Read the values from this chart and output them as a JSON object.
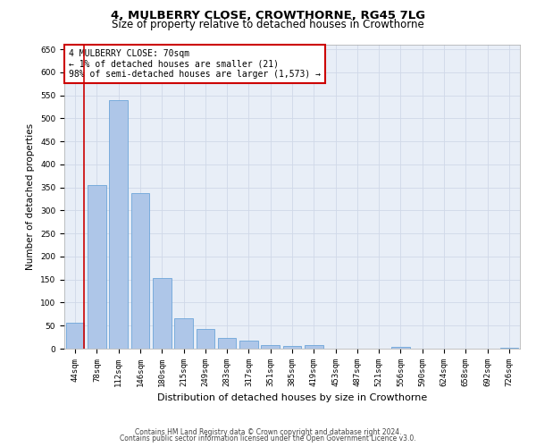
{
  "title": "4, MULBERRY CLOSE, CROWTHORNE, RG45 7LG",
  "subtitle": "Size of property relative to detached houses in Crowthorne",
  "xlabel": "Distribution of detached houses by size in Crowthorne",
  "ylabel": "Number of detached properties",
  "bar_color": "#aec6e8",
  "bar_edge_color": "#5b9bd5",
  "categories": [
    "44sqm",
    "78sqm",
    "112sqm",
    "146sqm",
    "180sqm",
    "215sqm",
    "249sqm",
    "283sqm",
    "317sqm",
    "351sqm",
    "385sqm",
    "419sqm",
    "453sqm",
    "487sqm",
    "521sqm",
    "556sqm",
    "590sqm",
    "624sqm",
    "658sqm",
    "692sqm",
    "726sqm"
  ],
  "values": [
    57,
    355,
    540,
    337,
    154,
    66,
    42,
    24,
    18,
    8,
    5,
    8,
    0,
    0,
    0,
    3,
    0,
    0,
    0,
    0,
    2
  ],
  "ylim": [
    0,
    660
  ],
  "yticks": [
    0,
    50,
    100,
    150,
    200,
    250,
    300,
    350,
    400,
    450,
    500,
    550,
    600,
    650
  ],
  "annotation_text": "4 MULBERRY CLOSE: 70sqm\n← 1% of detached houses are smaller (21)\n98% of semi-detached houses are larger (1,573) →",
  "annotation_box_color": "#ffffff",
  "annotation_box_edge": "#cc0000",
  "footer_line1": "Contains HM Land Registry data © Crown copyright and database right 2024.",
  "footer_line2": "Contains public sector information licensed under the Open Government Licence v3.0.",
  "grid_color": "#d0d8e8",
  "bg_color": "#e8eef7",
  "property_line_color": "#cc0000",
  "title_fontsize": 9.5,
  "subtitle_fontsize": 8.5,
  "tick_fontsize": 6.5,
  "ylabel_fontsize": 7.5,
  "xlabel_fontsize": 8.0,
  "annotation_fontsize": 7.0,
  "footer_fontsize": 5.5
}
